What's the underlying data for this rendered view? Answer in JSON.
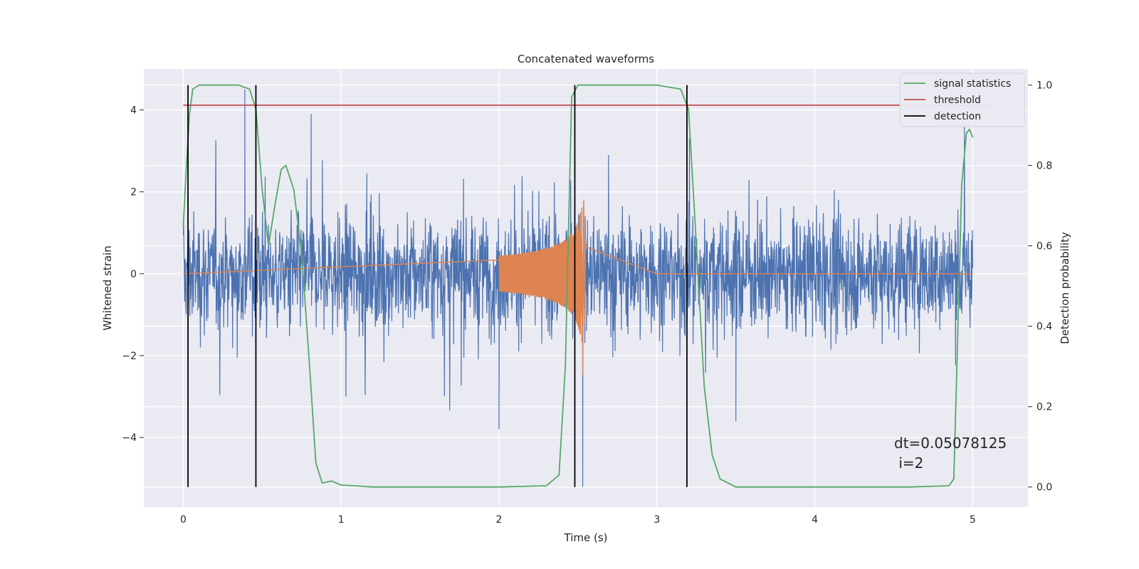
{
  "chart_data": {
    "type": "line",
    "title": "Concatenated waveforms",
    "xlabel": "Time (s)",
    "ylabel": "Whitened strain",
    "y2label": "Detection probability",
    "xlim": [
      -0.25,
      5.35
    ],
    "ylim": [
      -5.7,
      5.0
    ],
    "y2lim": [
      -0.05,
      1.04
    ],
    "xticks": [
      0,
      1,
      2,
      3,
      4,
      5
    ],
    "xtick_labels": [
      "0",
      "1",
      "2",
      "3",
      "4",
      "5"
    ],
    "yticks": [
      -4,
      -2,
      0,
      2,
      4
    ],
    "ytick_labels": [
      "−4",
      "−2",
      "0",
      "2",
      "4"
    ],
    "y2ticks": [
      0.0,
      0.2,
      0.4,
      0.6,
      0.8,
      1.0
    ],
    "y2tick_labels": [
      "0.0",
      "0.2",
      "0.4",
      "0.6",
      "0.8",
      "1.0"
    ],
    "grid": true,
    "legend_position": "top-right",
    "annotation": {
      "line1": "dt=0.05078125",
      "line2": " i=2",
      "x": 4.5,
      "y": -4.5
    },
    "series": [
      {
        "name": "whitened strain",
        "axis": "left",
        "color": "#4c72b0",
        "kind": "noise",
        "x_range": [
          0,
          5
        ],
        "amplitude": 0.8,
        "peak_max": 4.5,
        "peak_min": -5.2
      },
      {
        "name": "injected waveform",
        "axis": "left",
        "color": "#dd8452",
        "kind": "chirp",
        "x_range": [
          2.0,
          2.55
        ],
        "merger_time": 2.53,
        "peak_amplitude": 2.0
      },
      {
        "name": "signal statistics",
        "axis": "right",
        "color": "#55a868",
        "x": [
          0.0,
          0.02,
          0.04,
          0.06,
          0.1,
          0.2,
          0.35,
          0.42,
          0.46,
          0.5,
          0.54,
          0.58,
          0.62,
          0.65,
          0.7,
          0.75,
          0.8,
          0.84,
          0.88,
          0.94,
          1.0,
          1.2,
          1.6,
          2.0,
          2.3,
          2.38,
          2.42,
          2.46,
          2.5,
          2.55,
          2.6,
          3.0,
          3.15,
          3.2,
          3.25,
          3.3,
          3.35,
          3.4,
          3.5,
          3.8,
          4.2,
          4.6,
          4.85,
          4.88,
          4.9,
          4.93,
          4.96,
          4.98,
          5.0
        ],
        "y": [
          0.65,
          0.8,
          0.93,
          0.99,
          1.0,
          1.0,
          1.0,
          0.99,
          0.94,
          0.74,
          0.6,
          0.7,
          0.79,
          0.8,
          0.74,
          0.58,
          0.3,
          0.06,
          0.01,
          0.015,
          0.005,
          0.0,
          0.0,
          0.0,
          0.003,
          0.03,
          0.3,
          0.97,
          1.0,
          1.0,
          1.0,
          1.0,
          0.99,
          0.94,
          0.6,
          0.25,
          0.08,
          0.02,
          0.0,
          0.0,
          0.0,
          0.0,
          0.003,
          0.02,
          0.3,
          0.75,
          0.88,
          0.89,
          0.87
        ]
      },
      {
        "name": "threshold",
        "axis": "right",
        "color": "#c44e52",
        "x": [
          0.0,
          5.1
        ],
        "y": [
          0.95,
          0.95
        ]
      },
      {
        "name": "detection",
        "axis": "right",
        "color": "#000000",
        "kind": "vlines",
        "x": [
          0.03,
          0.46,
          2.48,
          3.19
        ],
        "y_from": 0.0,
        "y_to": 1.0
      }
    ],
    "legend": [
      {
        "label": "signal statistics",
        "color": "#55a868"
      },
      {
        "label": "threshold",
        "color": "#c44e52"
      },
      {
        "label": "detection",
        "color": "#000000"
      }
    ]
  }
}
